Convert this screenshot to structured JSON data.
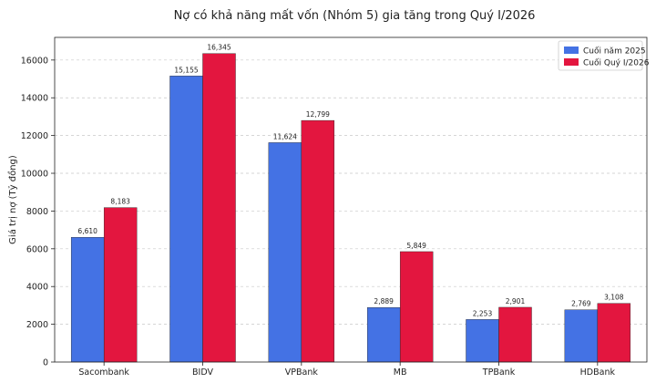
{
  "chart_data": {
    "type": "bar",
    "title": "Nợ có khả năng mất vốn (Nhóm 5) gia tăng trong Quý I/2026",
    "xlabel": "",
    "ylabel": "Giá trị nợ (Tỷ đồng)",
    "categories": [
      "Sacombank",
      "BIDV",
      "VPBank",
      "MB",
      "TPBank",
      "HDBank"
    ],
    "series": [
      {
        "name": "Cuối năm 2025",
        "color": "#4472E4",
        "values": [
          6610,
          15155,
          11624,
          2889,
          2253,
          2769
        ],
        "labels": [
          "6,610",
          "15,155",
          "11,624",
          "2,889",
          "2,253",
          "2,769"
        ]
      },
      {
        "name": "Cuối Quý I/2026",
        "color": "#E3163F",
        "values": [
          8183,
          16345,
          12799,
          5849,
          2901,
          3108
        ],
        "labels": [
          "8,183",
          "16,345",
          "12,799",
          "5,849",
          "2,901",
          "3,108"
        ]
      }
    ],
    "ylim": [
      0,
      17200
    ],
    "yticks": [
      0,
      2000,
      4000,
      6000,
      8000,
      10000,
      12000,
      14000,
      16000
    ],
    "grid": "y-dashed",
    "legend": "top-right"
  }
}
